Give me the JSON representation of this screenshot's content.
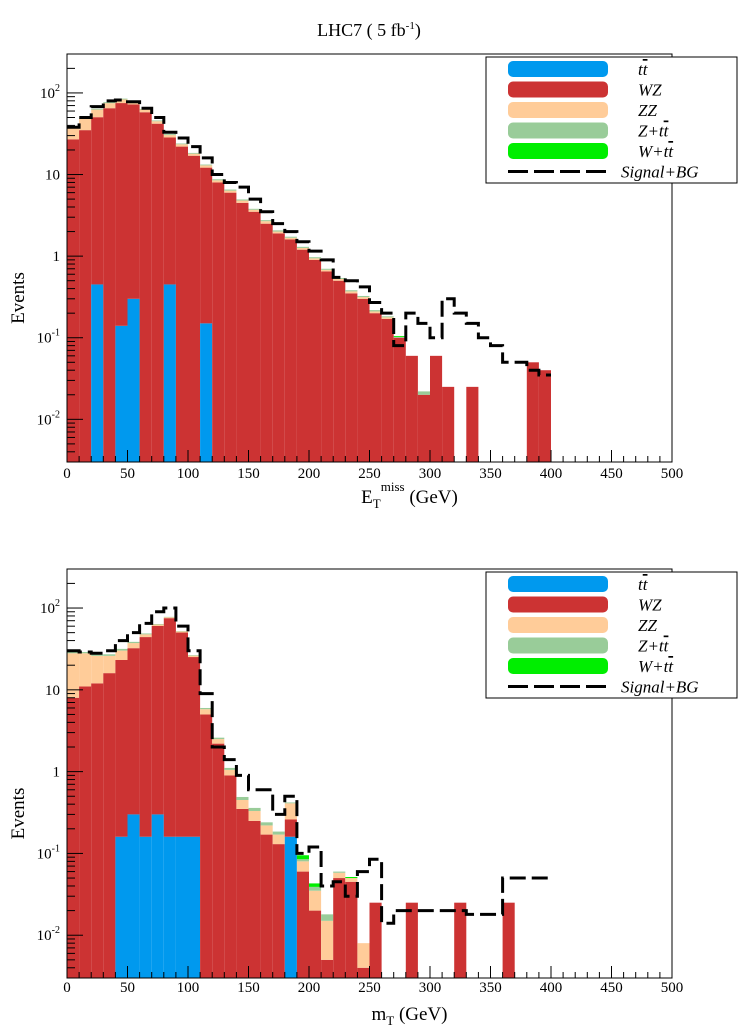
{
  "header": {
    "title_main": "LHC7 ( 5  fb",
    "title_sup": "-1",
    "title_end": ")"
  },
  "colors": {
    "tt": "#0099ee",
    "WZ": "#cc3333",
    "ZZ": "#ffcc99",
    "Ztt": "#99cc99",
    "Wtt": "#00ee00",
    "signal": "#000000"
  },
  "chart_data": [
    {
      "type": "bar",
      "stacked": true,
      "xlabel": "E",
      "xlabel_sub": "T",
      "xlabel_sup": "miss",
      "xlabel_unit": " (GeV)",
      "ylabel": "Events",
      "log_y": true,
      "xlim": [
        0,
        500
      ],
      "ylim": [
        0.003,
        300
      ],
      "grid": false,
      "legend_position": "top-right",
      "x_ticks": [
        "0",
        "50",
        "100",
        "150",
        "200",
        "250",
        "300",
        "350",
        "400",
        "450",
        "500"
      ],
      "y_ticks": [
        {
          "value": 0.01,
          "base": "10",
          "exp": "-2"
        },
        {
          "value": 0.1,
          "base": "10",
          "exp": "-1"
        },
        {
          "value": 1,
          "base": "1",
          "exp": ""
        },
        {
          "value": 10,
          "base": "10",
          "exp": ""
        },
        {
          "value": 100,
          "base": "10",
          "exp": "2"
        }
      ],
      "bin_width": 10,
      "bins_low": [
        0,
        10,
        20,
        30,
        40,
        50,
        60,
        70,
        80,
        90,
        100,
        110,
        120,
        130,
        140,
        150,
        160,
        170,
        180,
        190,
        200,
        210,
        220,
        230,
        240,
        250,
        260,
        270,
        280,
        290,
        300,
        310,
        320,
        330,
        340,
        350,
        360,
        370,
        380,
        390
      ],
      "series": [
        {
          "key": "tt",
          "label": "t#bar{t}",
          "values": [
            0,
            0,
            0.45,
            0,
            0.14,
            0.3,
            0,
            0,
            0.45,
            0,
            0,
            0.15,
            0,
            0,
            0,
            0,
            0,
            0,
            0,
            0,
            0,
            0,
            0,
            0,
            0,
            0,
            0,
            0,
            0,
            0,
            0,
            0,
            0,
            0,
            0,
            0,
            0,
            0,
            0,
            0
          ]
        },
        {
          "key": "WZ",
          "label": "WZ",
          "values": [
            27,
            35,
            50,
            65,
            75,
            72,
            58,
            42,
            28,
            22,
            17,
            12,
            8,
            6,
            4.5,
            3.5,
            2.5,
            1.9,
            1.6,
            1.2,
            0.9,
            0.65,
            0.5,
            0.35,
            0.3,
            0.2,
            0.17,
            0.1,
            0.06,
            0.02,
            0.06,
            0.025,
            0,
            0.025,
            0,
            0,
            0,
            0,
            0.05,
            0.04
          ]
        },
        {
          "key": "ZZ",
          "label": "ZZ",
          "values": [
            10,
            13,
            12,
            10,
            8,
            6,
            4.5,
            3,
            2,
            1.5,
            1,
            0.8,
            0.5,
            0.35,
            0.3,
            0.2,
            0.18,
            0.1,
            0.08,
            0.06,
            0.04,
            0.03,
            0.025,
            0.02,
            0.015,
            0.01,
            0.008,
            0,
            0,
            0,
            0,
            0,
            0,
            0,
            0,
            0,
            0,
            0,
            0,
            0
          ]
        },
        {
          "key": "Ztt",
          "label": "Z+t#bar{t}",
          "values": [
            0.8,
            1,
            1.5,
            2,
            2,
            1.5,
            1.2,
            1,
            0.8,
            0.5,
            0.4,
            0.3,
            0.25,
            0.2,
            0.15,
            0.1,
            0.08,
            0.07,
            0.05,
            0.04,
            0.03,
            0.02,
            0.015,
            0.012,
            0.01,
            0.008,
            0.005,
            0.0022,
            0,
            0.002,
            0,
            0,
            0,
            0,
            0,
            0,
            0,
            0,
            0,
            0
          ]
        },
        {
          "key": "Wtt",
          "label": "W+t#bar{t}",
          "values": [
            0,
            0,
            0,
            0,
            0,
            0,
            0,
            0,
            0,
            0,
            0,
            0,
            0,
            0,
            0,
            0,
            0,
            0,
            0,
            0,
            0,
            0,
            0,
            0,
            0,
            0,
            0,
            0.0025,
            0,
            0,
            0,
            0,
            0,
            0,
            0,
            0,
            0,
            0,
            0,
            0
          ]
        }
      ],
      "signal_bg": {
        "label": "Signal+BG",
        "values": [
          38,
          50,
          68,
          80,
          82,
          78,
          65,
          50,
          33,
          28,
          22,
          16,
          10,
          8,
          7,
          5,
          3.5,
          2.5,
          2,
          1.5,
          1.15,
          0.9,
          0.55,
          0.5,
          0.42,
          0.27,
          0.2,
          0.08,
          0.2,
          0.15,
          0.1,
          0.3,
          0.2,
          0.15,
          0.1,
          0.08,
          0.05,
          0.05,
          0.04,
          0.035
        ]
      }
    },
    {
      "type": "bar",
      "stacked": true,
      "xlabel": "m",
      "xlabel_sub": "T",
      "xlabel_sup": "",
      "xlabel_unit": " (GeV)",
      "ylabel": "Events",
      "log_y": true,
      "xlim": [
        0,
        500
      ],
      "ylim": [
        0.003,
        300
      ],
      "grid": false,
      "legend_position": "top-right",
      "x_ticks": [
        "0",
        "50",
        "100",
        "150",
        "200",
        "250",
        "300",
        "350",
        "400",
        "450",
        "500"
      ],
      "y_ticks": [
        {
          "value": 0.01,
          "base": "10",
          "exp": "-2"
        },
        {
          "value": 0.1,
          "base": "10",
          "exp": "-1"
        },
        {
          "value": 1,
          "base": "1",
          "exp": ""
        },
        {
          "value": 10,
          "base": "10",
          "exp": ""
        },
        {
          "value": 100,
          "base": "10",
          "exp": "2"
        }
      ],
      "bin_width": 10,
      "bins_low": [
        0,
        10,
        20,
        30,
        40,
        50,
        60,
        70,
        80,
        90,
        100,
        110,
        120,
        130,
        140,
        150,
        160,
        170,
        180,
        190,
        200,
        210,
        220,
        230,
        240,
        250,
        260,
        270,
        280,
        290,
        300,
        310,
        320,
        330,
        340,
        350,
        360,
        370,
        380,
        390
      ],
      "series": [
        {
          "key": "tt",
          "label": "t#bar{t}",
          "values": [
            0,
            0,
            0,
            0,
            0.16,
            0.3,
            0.16,
            0.3,
            0.16,
            0.16,
            0.16,
            0,
            0,
            0,
            0,
            0,
            0,
            0,
            0.16,
            0,
            0,
            0,
            0,
            0,
            0,
            0,
            0,
            0,
            0,
            0,
            0,
            0,
            0,
            0,
            0,
            0,
            0,
            0,
            0,
            0
          ]
        },
        {
          "key": "WZ",
          "label": "WZ",
          "values": [
            8,
            11,
            12,
            16,
            23,
            32,
            44,
            60,
            75,
            50,
            25,
            5,
            2.2,
            0.9,
            0.35,
            0.25,
            0.17,
            0.13,
            0.1,
            0.06,
            0.02,
            0.005,
            0.05,
            0.045,
            0.004,
            0.025,
            0,
            0,
            0.025,
            0,
            0,
            0,
            0.025,
            0,
            0,
            0,
            0.025,
            0,
            0,
            0
          ]
        },
        {
          "key": "ZZ",
          "label": "ZZ",
          "values": [
            20,
            17,
            14,
            10,
            7,
            5,
            3.5,
            2.5,
            2,
            1.5,
            1,
            0.8,
            0.3,
            0.15,
            0.1,
            0.08,
            0.05,
            0.04,
            0.15,
            0.02,
            0.015,
            0.01,
            0.008,
            0.005,
            0.004,
            0,
            0,
            0,
            0,
            0,
            0,
            0,
            0,
            0,
            0,
            0,
            0,
            0,
            0,
            0
          ]
        },
        {
          "key": "Ztt",
          "label": "Z+t#bar{t}",
          "values": [
            1,
            1,
            1,
            1.2,
            1.5,
            1.3,
            1.2,
            1,
            0.8,
            0.5,
            0.4,
            0.2,
            0.1,
            0.06,
            0.04,
            0.03,
            0.02,
            0.015,
            0.01,
            0.005,
            0.004,
            0.003,
            0.002,
            0,
            0,
            0,
            0,
            0,
            0,
            0,
            0,
            0,
            0,
            0,
            0,
            0,
            0,
            0,
            0,
            0
          ]
        },
        {
          "key": "Wtt",
          "label": "W+t#bar{t}",
          "values": [
            0,
            0,
            0,
            0,
            0,
            0,
            0,
            0,
            0,
            0,
            0,
            0,
            0,
            0,
            0,
            0,
            0,
            0,
            0,
            0.01,
            0.004,
            0,
            0,
            0.0015,
            0,
            0,
            0,
            0,
            0,
            0,
            0,
            0,
            0,
            0,
            0,
            0,
            0,
            0,
            0,
            0
          ]
        }
      ],
      "signal_bg": {
        "label": "Signal+BG",
        "values": [
          30,
          29,
          28,
          30,
          40,
          50,
          65,
          90,
          100,
          60,
          30,
          9,
          2,
          1.4,
          0.9,
          0.6,
          0.6,
          0.3,
          0.5,
          0.1,
          0.12,
          0.04,
          0.045,
          0.03,
          0.06,
          0.085,
          0.014,
          0.02,
          0.02,
          0.02,
          0.02,
          0.02,
          0.02,
          0.018,
          0.018,
          0.018,
          0.05,
          0.05,
          0.05,
          0.05
        ]
      }
    }
  ]
}
